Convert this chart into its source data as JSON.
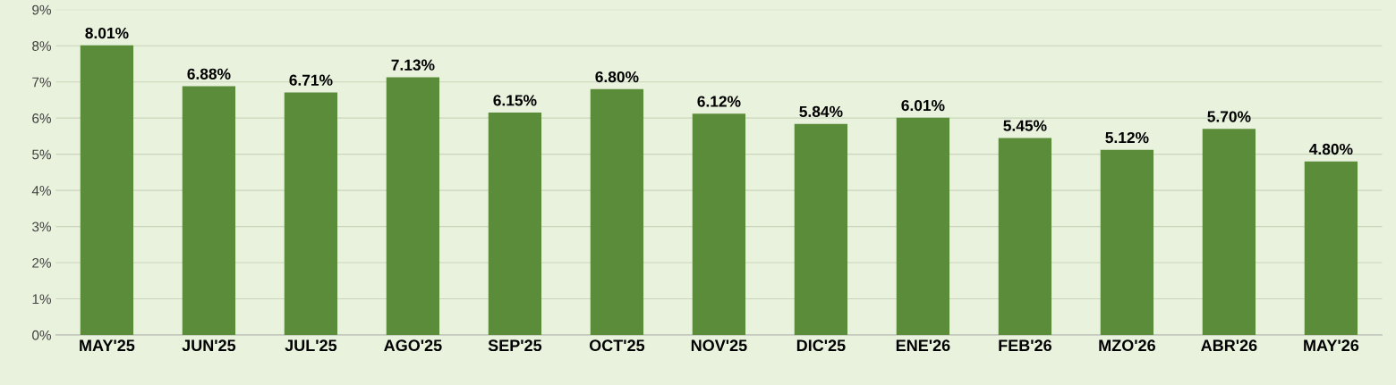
{
  "chart_data": {
    "type": "bar",
    "categories": [
      "MAY'25",
      "JUN'25",
      "JUL'25",
      "AGO'25",
      "SEP'25",
      "OCT'25",
      "NOV'25",
      "DIC'25",
      "ENE'26",
      "FEB'26",
      "MZO'26",
      "ABR'26",
      "MAY'26"
    ],
    "values": [
      8.01,
      6.88,
      6.71,
      7.13,
      6.15,
      6.8,
      6.12,
      5.84,
      6.01,
      5.45,
      5.12,
      5.7,
      4.8
    ],
    "value_labels": [
      "8.01%",
      "6.88%",
      "6.71%",
      "7.13%",
      "6.15%",
      "6.80%",
      "6.12%",
      "5.84%",
      "6.01%",
      "5.45%",
      "5.12%",
      "5.70%",
      "4.80%"
    ],
    "color": "#5b8c3a",
    "ylim": [
      0,
      9
    ],
    "yticks": [
      {
        "value": 0,
        "label": "0%"
      },
      {
        "value": 1,
        "label": "1%"
      },
      {
        "value": 2,
        "label": "2%"
      },
      {
        "value": 3,
        "label": "3%"
      },
      {
        "value": 4,
        "label": "4%"
      },
      {
        "value": 5,
        "label": "5%"
      },
      {
        "value": 6,
        "label": "6%"
      },
      {
        "value": 7,
        "label": "7%"
      },
      {
        "value": 8,
        "label": "8%"
      },
      {
        "value": 9,
        "label": "9%"
      }
    ],
    "grid": "y",
    "legend": false
  }
}
